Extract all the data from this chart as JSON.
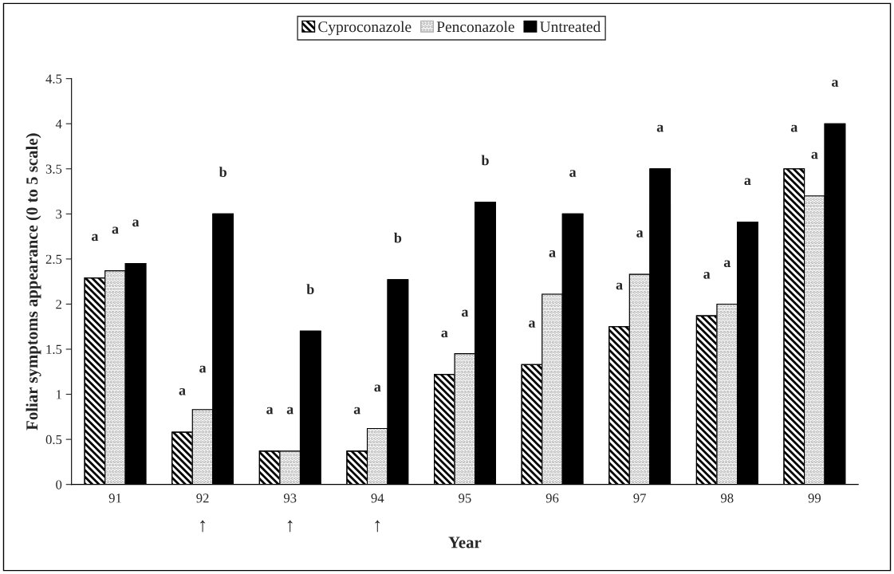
{
  "chart_data": {
    "type": "bar",
    "xlabel": "Year",
    "ylabel": "Foliar symptoms appearance (0 to 5 scale)",
    "categories": [
      "91",
      "92",
      "93",
      "94",
      "95",
      "96",
      "97",
      "98",
      "99"
    ],
    "series": [
      {
        "name": "Cyproconazole",
        "color": "#000000",
        "values": [
          2.29,
          0.58,
          0.37,
          0.37,
          1.22,
          1.33,
          1.75,
          1.87,
          3.5
        ],
        "value_labels": [
          "a",
          "a",
          "a",
          "a",
          "a",
          "a",
          "a",
          "a",
          "a"
        ]
      },
      {
        "name": "Penconazole",
        "color": "#b0b0b0",
        "values": [
          2.37,
          0.83,
          0.37,
          0.62,
          1.45,
          2.11,
          2.33,
          2.0,
          3.2
        ],
        "value_labels": [
          "a",
          "a",
          "a",
          "a",
          "a",
          "a",
          "a",
          "a",
          "a"
        ]
      },
      {
        "name": "Untreated",
        "color": "#000000",
        "values": [
          2.45,
          3.0,
          1.7,
          2.27,
          3.13,
          3.0,
          3.5,
          2.91,
          4.0
        ],
        "value_labels": [
          "a",
          "b",
          "b",
          "b",
          "b",
          "a",
          "a",
          "a",
          "a"
        ]
      }
    ],
    "ylim": [
      0,
      4.5
    ],
    "yticks": [
      0,
      0.5,
      1,
      1.5,
      2,
      2.5,
      3,
      3.5,
      4,
      4.5
    ],
    "grid": false,
    "legend": "top",
    "annotations": [
      "↑",
      "↑",
      "↑"
    ]
  }
}
